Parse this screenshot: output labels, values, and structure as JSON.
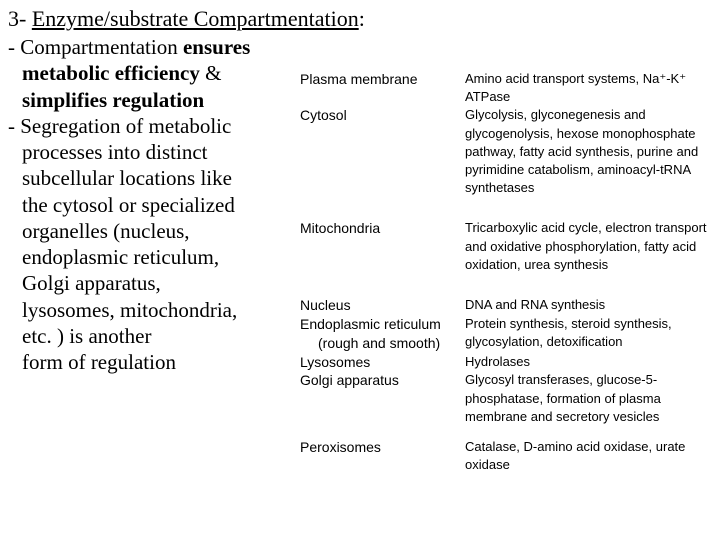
{
  "heading": {
    "num": "3-",
    "title": "Enzyme/substrate Compartmentation",
    "colon": ":"
  },
  "left": {
    "b1a": "- Compartmentation ",
    "b1b": "ensures",
    "l2a": "metabolic efficiency",
    "l2b": " &",
    "l3": "simplifies regulation",
    "b2": "- Segregation of metabolic",
    "l5": "processes into distinct",
    "l6": "subcellular locations like",
    "l7": "the cytosol or specialized",
    "l8": "organelles (nucleus,",
    "l9": "endoplasmic  reticulum,",
    "l10": "Golgi apparatus,",
    "l11": "lysosomes, mitochondria,",
    "l12": "etc. ) is another",
    "l13": "form of regulation"
  },
  "rows": [
    {
      "loc": "Plasma membrane",
      "proc": "Amino acid transport systems, Na⁺-K⁺ ATPase"
    },
    {
      "loc": "Cytosol",
      "proc": "Glycolysis, glyconegenesis and glycogenolysis, hexose monophosphate pathway, fatty acid synthesis, purine and pyrimidine catabolism, aminoacyl-tRNA synthetases"
    },
    {
      "loc": "Mitochondria",
      "proc": "Tricarboxylic acid cycle, electron transport and oxidative phosphorylation, fatty acid oxidation, urea synthesis"
    },
    {
      "loc": "Nucleus",
      "proc": "DNA and RNA synthesis"
    },
    {
      "loc": "Endoplasmic reticulum",
      "loc2": "(rough and smooth)",
      "proc": "Protein synthesis, steroid synthesis, glycosylation, detoxification"
    },
    {
      "loc": "Lysosomes",
      "proc": "Hydrolases"
    },
    {
      "loc": "Golgi apparatus",
      "proc": "Glycosyl transferases, glucose-5-phosphatase, formation of plasma membrane and secretory vesicles"
    },
    {
      "loc": "Peroxisomes",
      "proc": "Catalase, D-amino acid oxidase, urate oxidase"
    }
  ]
}
